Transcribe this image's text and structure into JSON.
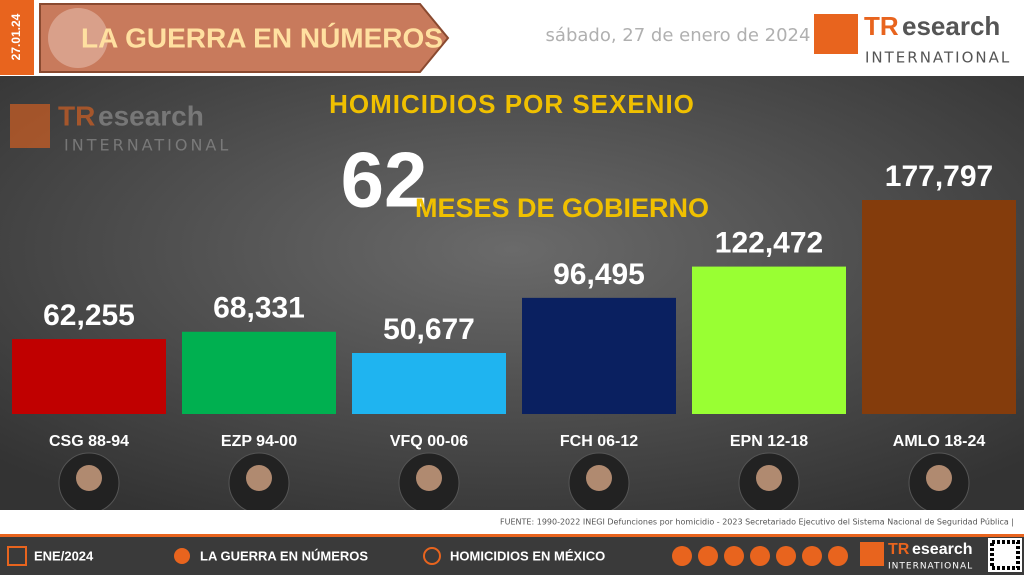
{
  "header": {
    "date_vertical": "27.01.24",
    "banner": "LA GUERRA EN NÚMEROS",
    "date": "sábado, 27 de enero de 2024",
    "logo_tr": "TR",
    "logo_research": "esearch",
    "logo_international": "INTERNATIONAL"
  },
  "chart_data": {
    "type": "bar",
    "title": "HOMICIDIOS POR SEXENIO",
    "months": 62,
    "months_label": "MESES DE GOBIERNO",
    "categories": [
      "CSG 88-94",
      "EZP 94-00",
      "VFQ 00-06",
      "FCH 06-12",
      "EPN 12-18",
      "AMLO 18-24"
    ],
    "values": [
      62255,
      68331,
      50677,
      96495,
      122472,
      177797
    ],
    "value_labels": [
      "62,255",
      "68,331",
      "50,677",
      "96,495",
      "122,472",
      "177,797"
    ],
    "colors": [
      "#c00000",
      "#00b050",
      "#1fb4f0",
      "#0a2060",
      "#99ff33",
      "#843c0c"
    ]
  },
  "source": "FUENTE: 1990-2022 INEGI Defunciones por homicidio - 2023 Secretariado Ejecutivo del Sistema Nacional de Seguridad Pública |",
  "footer": {
    "period": "ENE/2024",
    "series": "LA GUERRA EN NÚMEROS",
    "topic": "HOMICIDIOS EN MÉXICO"
  }
}
